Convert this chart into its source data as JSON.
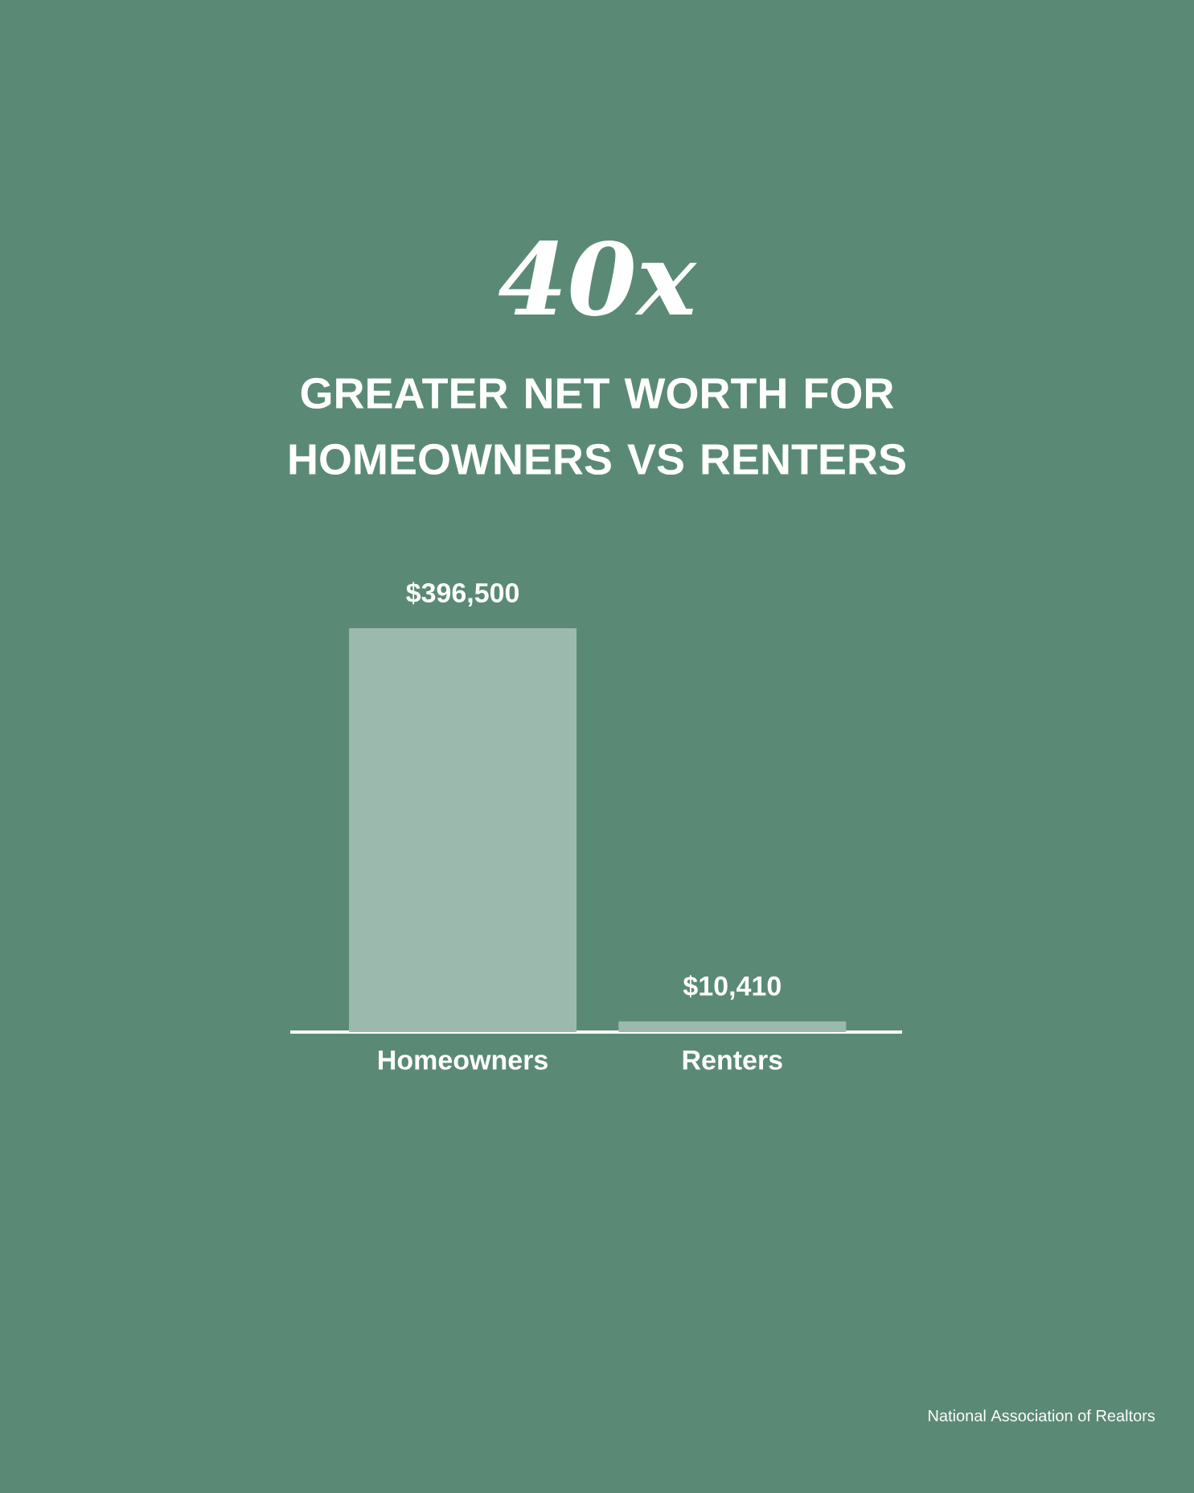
{
  "chart_data": {
    "type": "bar",
    "title": "40x",
    "subtitle": "GREATER NET WORTH FOR HOMEOWNERS VS RENTERS",
    "categories": [
      "Homeowners",
      "Renters"
    ],
    "values": [
      396500,
      10410
    ],
    "value_labels": [
      "$396,500",
      "$10,410"
    ],
    "color": "#9bbaad",
    "annotations": [
      "National Association of Realtors"
    ]
  }
}
